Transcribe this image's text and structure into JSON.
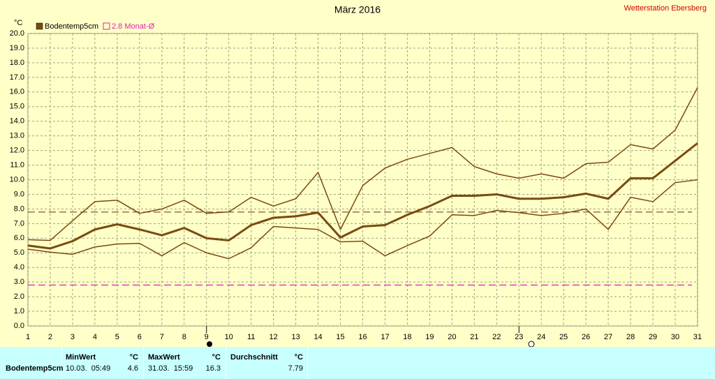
{
  "chart_data": {
    "type": "line",
    "title": "März 2016",
    "station": "Wetterstation Ebersberg",
    "y_unit": "°C",
    "categories": [
      "1",
      "2",
      "3",
      "4",
      "5",
      "6",
      "7",
      "8",
      "9",
      "10",
      "11",
      "12",
      "13",
      "14",
      "15",
      "16",
      "17",
      "18",
      "19",
      "20",
      "21",
      "22",
      "23",
      "24",
      "25",
      "26",
      "27",
      "28",
      "29",
      "30",
      "31"
    ],
    "series": [
      {
        "name": "Bodentemp5cm",
        "color": "#7a4a10",
        "width": 3,
        "values": [
          5.5,
          5.3,
          5.8,
          6.6,
          6.95,
          6.6,
          6.2,
          6.7,
          6.0,
          5.85,
          6.9,
          7.4,
          7.5,
          7.75,
          6.05,
          6.8,
          6.9,
          7.6,
          8.2,
          8.9,
          8.9,
          9.0,
          8.7,
          8.7,
          8.8,
          9.05,
          8.7,
          10.1,
          10.1,
          11.3,
          12.5
        ]
      },
      {
        "color": "#7a4a10",
        "width": 1.5,
        "values": [
          5.9,
          5.85,
          7.2,
          8.5,
          8.6,
          7.7,
          8.0,
          8.6,
          7.7,
          7.8,
          8.8,
          8.2,
          8.7,
          10.5,
          6.6,
          9.6,
          10.8,
          11.4,
          11.8,
          12.2,
          10.9,
          10.4,
          10.1,
          10.4,
          10.1,
          11.1,
          11.2,
          12.4,
          12.1,
          13.4,
          16.3
        ]
      },
      {
        "color": "#7a4a10",
        "width": 1.5,
        "values": [
          5.25,
          5.05,
          4.9,
          5.4,
          5.6,
          5.65,
          4.8,
          5.7,
          5.0,
          4.6,
          5.35,
          6.8,
          6.7,
          6.6,
          5.75,
          5.8,
          4.8,
          5.5,
          6.15,
          7.6,
          7.55,
          7.9,
          7.75,
          7.55,
          7.7,
          8.0,
          6.6,
          8.8,
          8.5,
          9.8,
          10.0
        ]
      }
    ],
    "reference_lines": [
      {
        "value": 7.79,
        "color": "#7a4a10"
      },
      {
        "value": 2.8,
        "label": "2.8 Monat-Ø",
        "color": "#e020c0"
      }
    ],
    "ylim": [
      0,
      20
    ],
    "yticks": [
      {
        "value": 0,
        "label": "0.0"
      },
      {
        "value": 1,
        "label": "1.0"
      },
      {
        "value": 2,
        "label": "2.0"
      },
      {
        "value": 3,
        "label": "3.0"
      },
      {
        "value": 4,
        "label": "4.0"
      },
      {
        "value": 5,
        "label": "5.0"
      },
      {
        "value": 6,
        "label": "6.0"
      },
      {
        "value": 7,
        "label": "7.0"
      },
      {
        "value": 8,
        "label": "8.0"
      },
      {
        "value": 9,
        "label": "9.0"
      },
      {
        "value": 10,
        "label": "10.0"
      },
      {
        "value": 11,
        "label": "11.0"
      },
      {
        "value": 12,
        "label": "12.0"
      },
      {
        "value": 13,
        "label": "13.0"
      },
      {
        "value": 14,
        "label": "14.0"
      },
      {
        "value": 15,
        "label": "15.0"
      },
      {
        "value": 16,
        "label": "16.0"
      },
      {
        "value": 17,
        "label": "17.0"
      },
      {
        "value": 18,
        "label": "18.0"
      },
      {
        "value": 19,
        "label": "19.0"
      },
      {
        "value": 20,
        "label": "20.0"
      }
    ],
    "grid": true
  },
  "table": {
    "headers": [
      "MinWert",
      "°C",
      "MaxWert",
      "°C",
      "Durchschnitt",
      "°C"
    ],
    "rows": [
      [
        "Bodentemp5cm",
        "10.03.  05:49",
        "4.6",
        "31.03.  15:59",
        "16.3",
        "7.79"
      ]
    ]
  }
}
